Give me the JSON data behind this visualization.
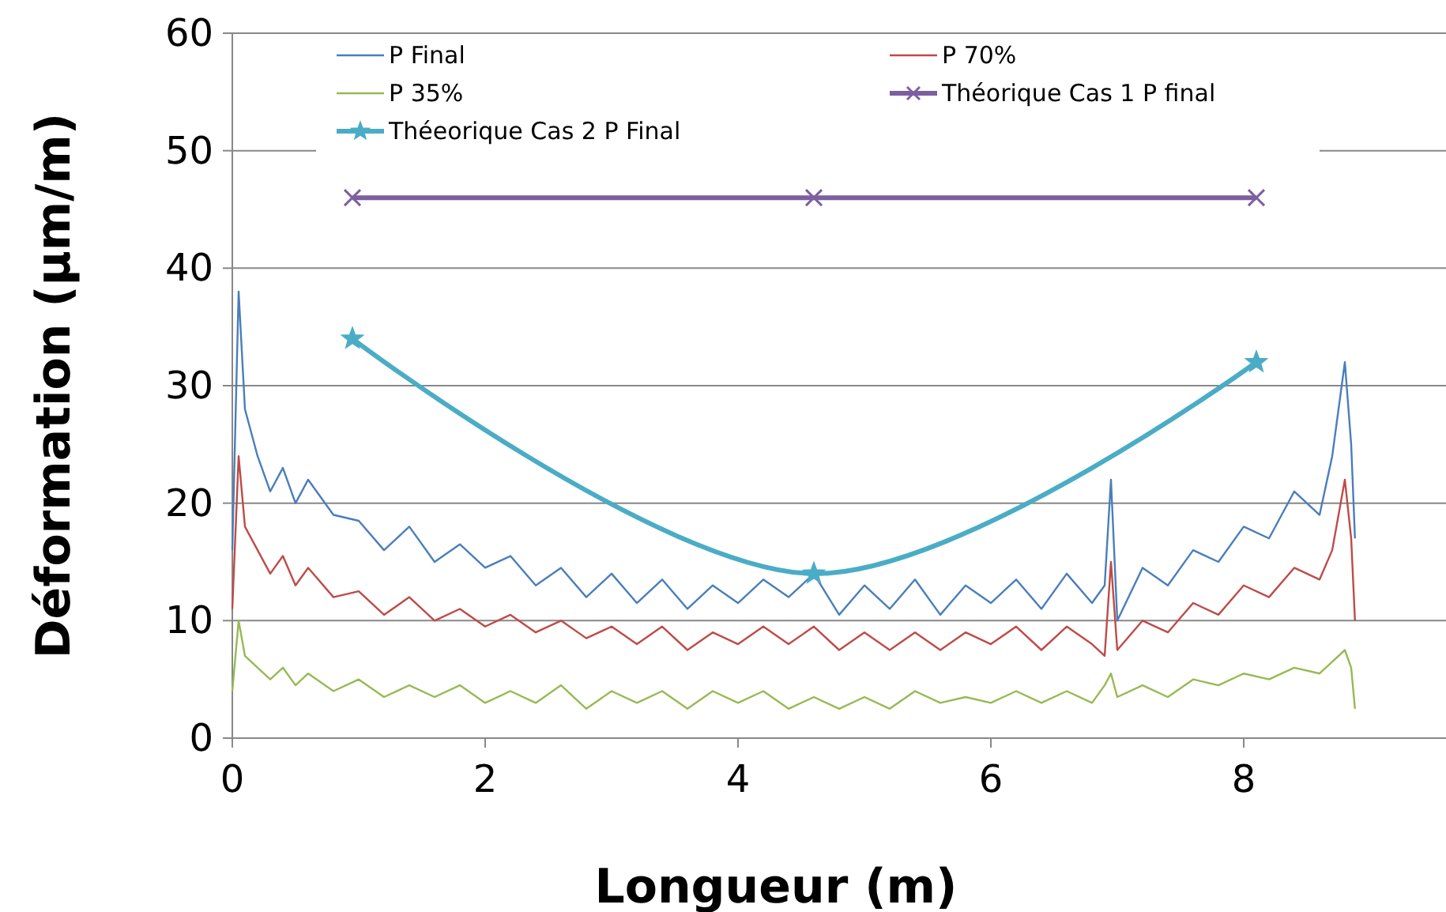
{
  "chart_data": {
    "type": "line",
    "xlabel": "Longueur (m)",
    "ylabel": "Déformation (µm/m)",
    "x": [
      0,
      0.05,
      0.1,
      0.2,
      0.3,
      0.4,
      0.5,
      0.6,
      0.8,
      1.0,
      1.2,
      1.4,
      1.6,
      1.8,
      2.0,
      2.2,
      2.4,
      2.6,
      2.8,
      3.0,
      3.2,
      3.4,
      3.6,
      3.8,
      4.0,
      4.2,
      4.4,
      4.6,
      4.8,
      5.0,
      5.2,
      5.4,
      5.6,
      5.8,
      6.0,
      6.2,
      6.4,
      6.6,
      6.8,
      6.9,
      6.95,
      7.0,
      7.2,
      7.4,
      7.6,
      7.8,
      8.0,
      8.2,
      8.4,
      8.6,
      8.7,
      8.8,
      8.85,
      8.88
    ],
    "series": [
      {
        "name": "P Final",
        "color": "#4a7ebb",
        "values": [
          16,
          38,
          28,
          24,
          21,
          23,
          20,
          22,
          19,
          18.5,
          16,
          18,
          15,
          16.5,
          14.5,
          15.5,
          13,
          14.5,
          12,
          14,
          11.5,
          13.5,
          11,
          13,
          11.5,
          13.5,
          12,
          14,
          10.5,
          13,
          11,
          13.5,
          10.5,
          13,
          11.5,
          13.5,
          11,
          14,
          11.5,
          13,
          22,
          10,
          14.5,
          13,
          16,
          15,
          18,
          17,
          21,
          19,
          24,
          32,
          25,
          17
        ]
      },
      {
        "name": "P 70%",
        "color": "#be4b48",
        "values": [
          11,
          24,
          18,
          16,
          14,
          15.5,
          13,
          14.5,
          12,
          12.5,
          10.5,
          12,
          10,
          11,
          9.5,
          10.5,
          9,
          10,
          8.5,
          9.5,
          8,
          9.5,
          7.5,
          9,
          8,
          9.5,
          8,
          9.5,
          7.5,
          9,
          7.5,
          9,
          7.5,
          9,
          8,
          9.5,
          7.5,
          9.5,
          8,
          7,
          15,
          7.5,
          10,
          9,
          11.5,
          10.5,
          13,
          12,
          14.5,
          13.5,
          16,
          22,
          17,
          10
        ]
      },
      {
        "name": "P 35%",
        "color": "#98b954",
        "values": [
          4,
          10,
          7,
          6,
          5,
          6,
          4.5,
          5.5,
          4,
          5,
          3.5,
          4.5,
          3.5,
          4.5,
          3,
          4,
          3,
          4.5,
          2.5,
          4,
          3,
          4,
          2.5,
          4,
          3,
          4,
          2.5,
          3.5,
          2.5,
          3.5,
          2.5,
          4,
          3,
          3.5,
          3,
          4,
          3,
          4,
          3,
          4.5,
          5.5,
          3.5,
          4.5,
          3.5,
          5,
          4.5,
          5.5,
          5,
          6,
          5.5,
          6.5,
          7.5,
          6,
          2.5
        ]
      },
      {
        "name": "Théorique Cas 1 P final",
        "color": "#7d5fa0",
        "marker": "cross",
        "x": [
          0.95,
          4.6,
          8.1
        ],
        "values": [
          46,
          46,
          46
        ]
      },
      {
        "name": "Théeorique Cas 2 P Final",
        "color": "#4bacc6",
        "marker": "star",
        "x": [
          0.95,
          4.6,
          8.1
        ],
        "values": [
          34,
          14,
          32
        ]
      }
    ],
    "xlim": [
      0,
      9.6
    ],
    "xticks": [
      0,
      2,
      4,
      6,
      8
    ],
    "ylim": [
      0,
      60
    ],
    "yticks": [
      0,
      10,
      20,
      30,
      40,
      50,
      60
    ],
    "grid": "y",
    "legend": "top"
  }
}
